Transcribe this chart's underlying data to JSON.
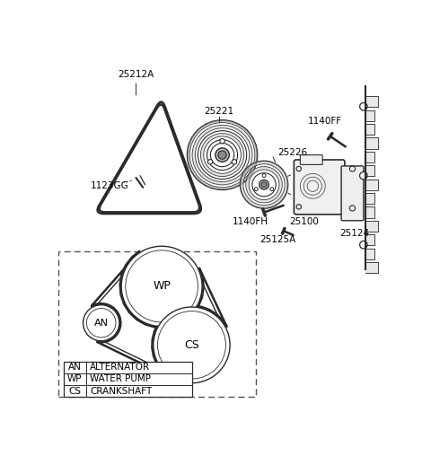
{
  "bg_color": "#ffffff",
  "line_color": "#2a2a2a",
  "label_color": "#000000",
  "legend_items": [
    [
      "AN",
      "ALTERNATOR"
    ],
    [
      "WP",
      "WATER PUMP"
    ],
    [
      "CS",
      "CRANKSHAFT"
    ]
  ],
  "labels": {
    "belt": "25212A",
    "bolt_small": "1123GG",
    "pulley_large": "25221",
    "pulley_small": "25226",
    "bolt_ff": "1140FF",
    "bolt_fh": "1140FH",
    "stud": "25125A",
    "pump": "25100",
    "gasket": "25124"
  }
}
